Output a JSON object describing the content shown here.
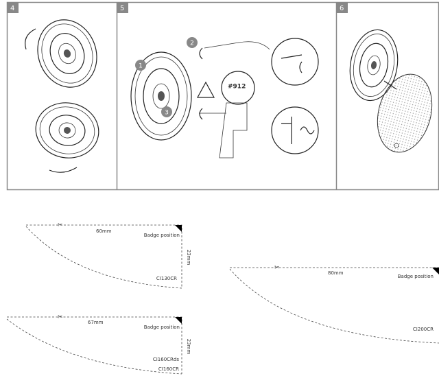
{
  "panels": [
    {
      "step": "4"
    },
    {
      "step": "5",
      "markers": [
        "1",
        "2",
        "3"
      ],
      "dial": "#912"
    },
    {
      "step": "6"
    }
  ],
  "templates": [
    {
      "width": "60mm",
      "badge": "Badge position",
      "depth": "23mm",
      "models": [
        "CI130CR"
      ]
    },
    {
      "width": "67mm",
      "badge": "Badge position",
      "depth": "23mm",
      "models": [
        "CI160CRds",
        "CI160CR"
      ]
    },
    {
      "width": "80mm",
      "badge": "Badge position",
      "models": [
        "CI200CR"
      ]
    }
  ]
}
